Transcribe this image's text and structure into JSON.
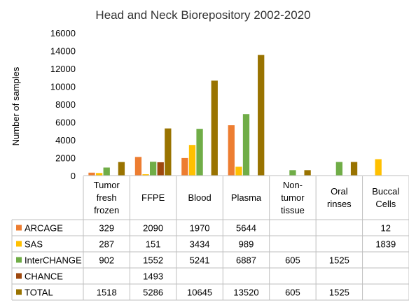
{
  "chart_data": {
    "type": "bar",
    "title": "Head and Neck  Biorepository 2002-2020",
    "ylabel": "Number of samples",
    "xlabel": "",
    "ylim": [
      0,
      16000
    ],
    "yticks": [
      "0",
      "2000",
      "4000",
      "6000",
      "8000",
      "10000",
      "12000",
      "14000",
      "16000"
    ],
    "grid": false,
    "legend": "data-table",
    "categories": [
      [
        "Tumor",
        "fresh",
        "frozen"
      ],
      [
        "FFPE"
      ],
      [
        "Blood"
      ],
      [
        "Plasma"
      ],
      [
        "Non-",
        "tumor",
        "tissue"
      ],
      [
        "Oral",
        "rinses"
      ],
      [
        "Buccal",
        "Cells"
      ]
    ],
    "series": [
      {
        "name": "ARCAGE",
        "color": "#ED7D31",
        "values": [
          329,
          2090,
          1970,
          5644,
          null,
          null,
          12
        ],
        "labels": [
          "329",
          "2090",
          "1970",
          "5644",
          "",
          "",
          "12"
        ]
      },
      {
        "name": "SAS",
        "color": "#FFC000",
        "values": [
          287,
          151,
          3434,
          989,
          null,
          null,
          1839
        ],
        "labels": [
          "287",
          "151",
          "3434",
          "989",
          "",
          "",
          "1839"
        ]
      },
      {
        "name": "InterCHANGE",
        "color": "#70AD47",
        "values": [
          902,
          1552,
          5241,
          6887,
          605,
          1525,
          null
        ],
        "labels": [
          "902",
          "1552",
          "5241",
          "6887",
          "605",
          "1525",
          ""
        ]
      },
      {
        "name": "CHANCE",
        "color": "#9E480E",
        "values": [
          null,
          1493,
          null,
          null,
          null,
          null,
          null
        ],
        "labels": [
          "",
          "1493",
          "",
          "",
          "",
          "",
          ""
        ]
      },
      {
        "name": "TOTAL",
        "color": "#997300",
        "values": [
          1518,
          5286,
          10645,
          13520,
          605,
          1525,
          null
        ],
        "labels": [
          "1518",
          "5286",
          "10645",
          "13520",
          "605",
          "1525",
          ""
        ]
      }
    ]
  }
}
